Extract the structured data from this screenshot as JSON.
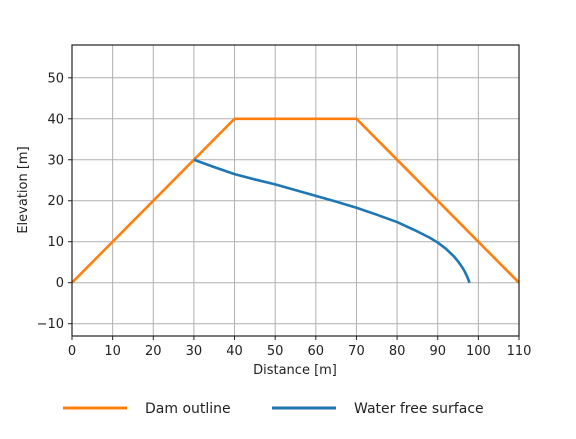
{
  "chart_data": {
    "type": "line",
    "title": "",
    "xlabel": "Distance [m]",
    "ylabel": "Elevation [m]",
    "xlim": [
      0,
      110
    ],
    "ylim": [
      -13,
      58
    ],
    "xticks": [
      0,
      10,
      20,
      30,
      40,
      50,
      60,
      70,
      80,
      90,
      100,
      110
    ],
    "yticks": [
      -10,
      0,
      10,
      20,
      30,
      40,
      50
    ],
    "xtick_labels": [
      "0",
      "10",
      "20",
      "30",
      "40",
      "50",
      "60",
      "70",
      "80",
      "90",
      "100",
      "110"
    ],
    "ytick_labels": [
      "−10",
      "0",
      "10",
      "20",
      "30",
      "40",
      "50"
    ],
    "grid": true,
    "legend_position": "bottom",
    "series": [
      {
        "name": "Dam outline",
        "color": "#ff7f0e",
        "x": [
          0,
          40,
          70,
          110
        ],
        "y": [
          0,
          40,
          40,
          0
        ]
      },
      {
        "name": "Water free surface",
        "color": "#1f77b4",
        "x": [
          30,
          35,
          40,
          45,
          50,
          55,
          60,
          65,
          70,
          75,
          80,
          85,
          88,
          90,
          92,
          94,
          95,
          96,
          96.6,
          97.2,
          97.6,
          97.8
        ],
        "y": [
          30,
          28.2,
          26.5,
          25.2,
          24,
          22.6,
          21.2,
          19.8,
          18.3,
          16.6,
          14.8,
          12.5,
          11,
          9.8,
          8.3,
          6.4,
          5.2,
          3.8,
          2.8,
          1.6,
          0.6,
          0
        ]
      }
    ]
  }
}
